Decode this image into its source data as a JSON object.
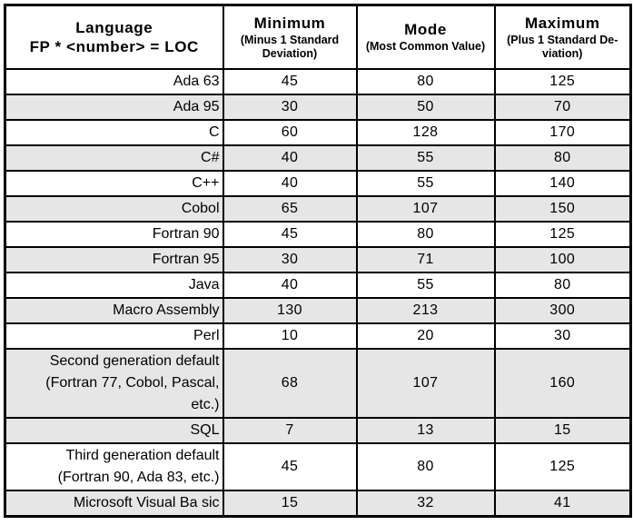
{
  "colors": {
    "row_shade": "#e6e6e6",
    "border": "#000000",
    "background": "#ffffff"
  },
  "table": {
    "columns": [
      {
        "title": "Language\nFP * <number> = LOC",
        "sub": ""
      },
      {
        "title": "Minimum",
        "sub": "(Minus 1 Standard\nDeviation)"
      },
      {
        "title": "Mode",
        "sub": "(Most Common Value)"
      },
      {
        "title": "Maximum",
        "sub": "(Plus 1 Standard De-\nviation)"
      }
    ],
    "rows": [
      {
        "language": "Ada 63",
        "min": "45",
        "mode": "80",
        "max": "125",
        "shaded": false
      },
      {
        "language": "Ada 95",
        "min": "30",
        "mode": "50",
        "max": "70",
        "shaded": true
      },
      {
        "language": "C",
        "min": "60",
        "mode": "128",
        "max": "170",
        "shaded": false
      },
      {
        "language": "C#",
        "min": "40",
        "mode": "55",
        "max": "80",
        "shaded": true
      },
      {
        "language": "C++",
        "min": "40",
        "mode": "55",
        "max": "140",
        "shaded": false
      },
      {
        "language": "Cobol",
        "min": "65",
        "mode": "107",
        "max": "150",
        "shaded": true
      },
      {
        "language": "Fortran 90",
        "min": "45",
        "mode": "80",
        "max": "125",
        "shaded": false
      },
      {
        "language": "Fortran 95",
        "min": "30",
        "mode": "71",
        "max": "100",
        "shaded": true
      },
      {
        "language": "Java",
        "min": "40",
        "mode": "55",
        "max": "80",
        "shaded": false
      },
      {
        "language": "Macro Assembly",
        "min": "130",
        "mode": "213",
        "max": "300",
        "shaded": true
      },
      {
        "language": "Perl",
        "min": "10",
        "mode": "20",
        "max": "30",
        "shaded": false
      },
      {
        "language": "Second generation default\n(Fortran 77, Cobol, Pascal,\netc.)",
        "min": "68",
        "mode": "107",
        "max": "160",
        "shaded": true
      },
      {
        "language": "SQL",
        "min": "7",
        "mode": "13",
        "max": "15",
        "shaded": true
      },
      {
        "language": "Third generation default\n(Fortran 90, Ada 83, etc.)",
        "min": "45",
        "mode": "80",
        "max": "125",
        "shaded": false
      },
      {
        "language": "Microsoft Visual Ba sic",
        "min": "15",
        "mode": "32",
        "max": "41",
        "shaded": true
      }
    ]
  }
}
